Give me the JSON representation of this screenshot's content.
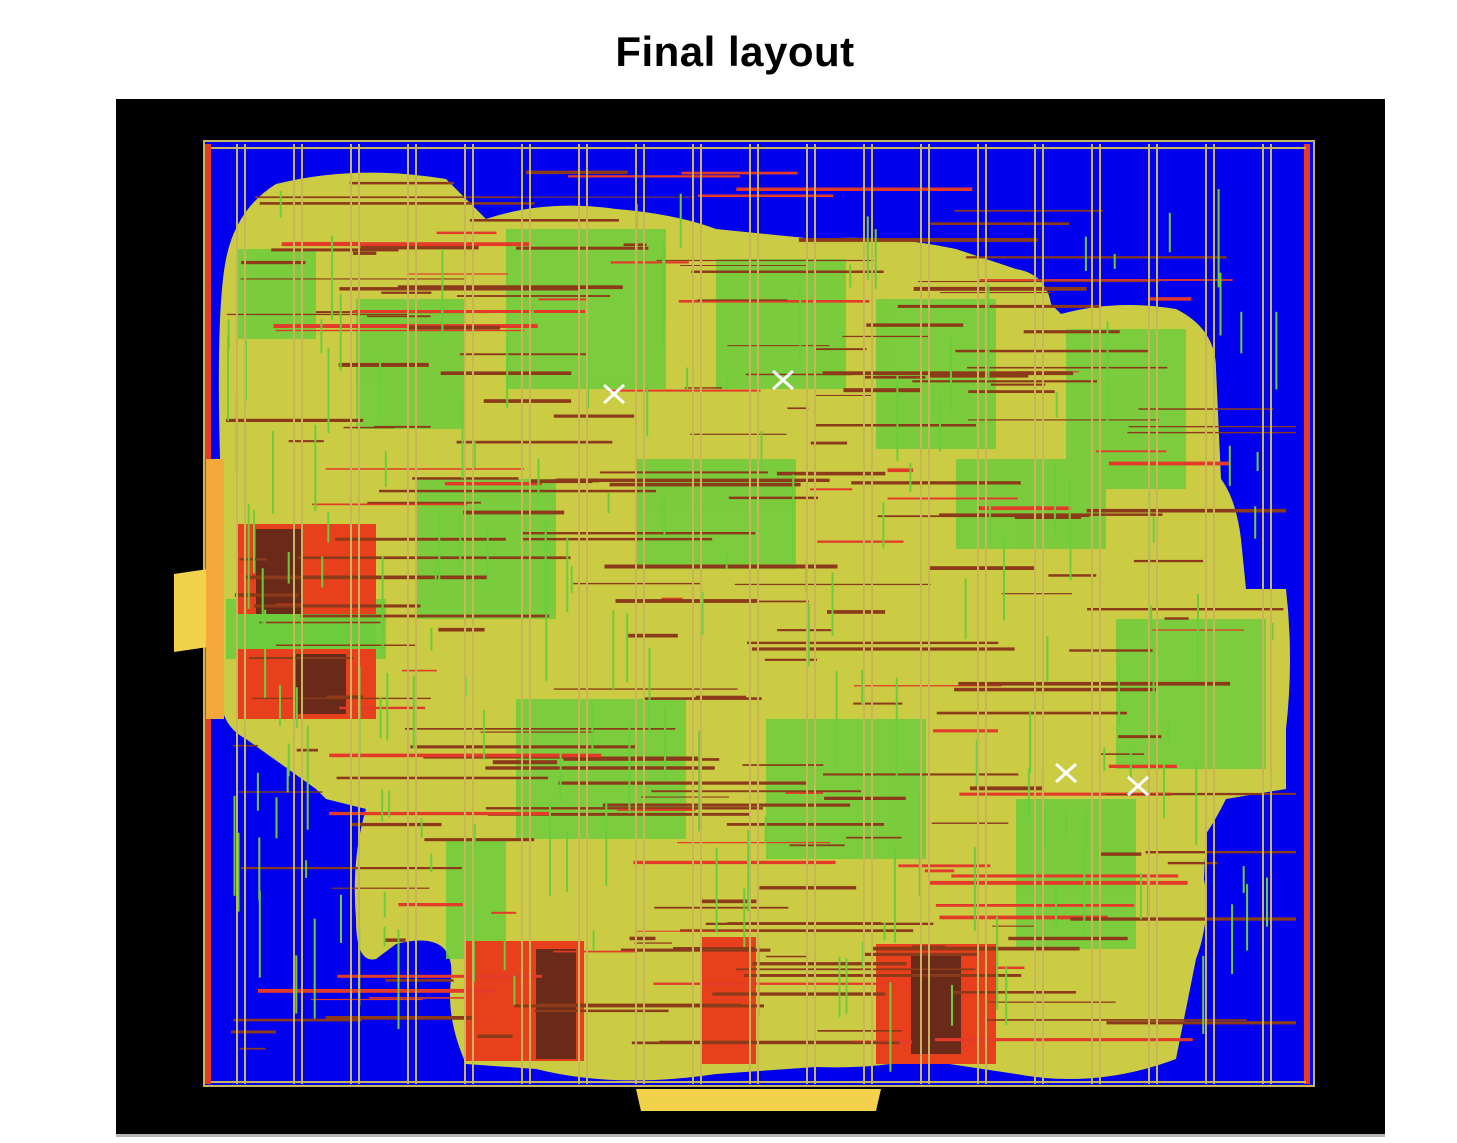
{
  "title": "Final layout",
  "colors": {
    "background": "#000000",
    "core_fill": "#0000ee",
    "power_stripe": "#c8b45a",
    "cell_fill": "#cccc44",
    "route_green": "#6ccc3c",
    "route_brown": "#8b3a1a",
    "macro_red": "#e8401c",
    "macro_dark": "#6a2a1a",
    "pin_pad": "#f2d24a",
    "marker": "#ffffff"
  },
  "markers": [
    "x-marker",
    "x-marker",
    "x-marker",
    "x-marker"
  ]
}
